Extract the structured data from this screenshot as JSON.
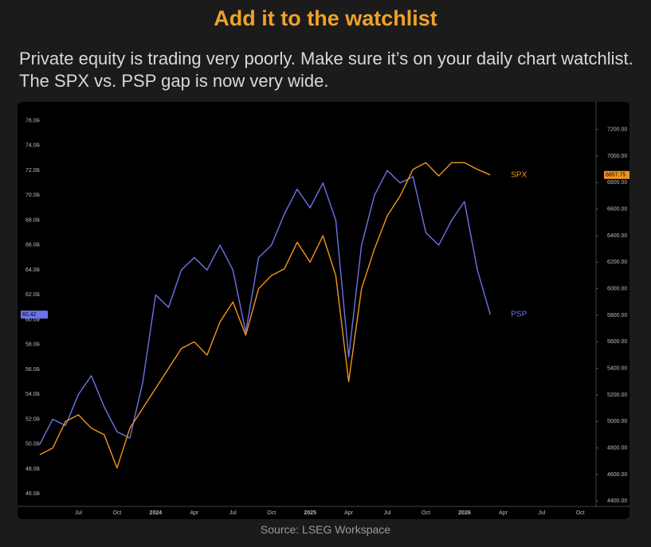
{
  "header": {
    "title": "Add it to the watchlist",
    "text": "Private equity is trading very poorly. Make sure it’s on your daily chart watchlist. The SPX vs. PSP gap is now very wide."
  },
  "footer": {
    "source": "Source: LSEG Workspace"
  },
  "chart_data": {
    "type": "line",
    "grid": false,
    "categories": [
      null,
      null,
      null,
      "Jul",
      null,
      null,
      "Oct",
      null,
      null,
      "2024",
      null,
      null,
      "Apr",
      null,
      null,
      "Jul",
      null,
      null,
      "Oct",
      null,
      null,
      "2025",
      null,
      null,
      "Apr",
      null,
      null,
      "Jul",
      null,
      null,
      "Oct",
      null,
      null,
      "2026",
      null,
      null,
      "Apr",
      null,
      null,
      "Jul",
      null,
      null,
      "Oct"
    ],
    "series": [
      {
        "name": "PSP",
        "color": "#6b74ea",
        "axis": "y",
        "values": [
          50,
          52,
          51.5,
          54,
          55.5,
          53,
          51,
          50.5,
          55,
          62,
          61,
          64,
          65,
          64,
          66,
          64,
          59,
          65,
          66,
          68.5,
          70.5,
          69,
          71,
          68,
          57,
          66,
          70,
          72,
          71,
          71.5,
          67,
          66,
          68,
          69.5,
          64,
          60.42,
          null,
          null,
          null,
          null,
          null,
          null,
          null
        ]
      },
      {
        "name": "SPX",
        "color": "#f3961a",
        "axis": "y2",
        "values": [
          4750,
          4800,
          5000,
          5050,
          4950,
          4900,
          4650,
          4950,
          5100,
          5250,
          5400,
          5550,
          5600,
          5500,
          5750,
          5900,
          5650,
          6000,
          6100,
          6150,
          6350,
          6200,
          6400,
          6100,
          5300,
          6000,
          6300,
          6550,
          6700,
          6900,
          6950,
          6850,
          6950,
          6950,
          6900,
          6857.75,
          null,
          null,
          null,
          null,
          null,
          null,
          null
        ]
      }
    ],
    "ylim": [
      45,
      77
    ],
    "yticks": [
      {
        "value": 46,
        "label": "46.00"
      },
      {
        "value": 48,
        "label": "48.00"
      },
      {
        "value": 50,
        "label": "50.00"
      },
      {
        "value": 52,
        "label": "52.00"
      },
      {
        "value": 54,
        "label": "54.00"
      },
      {
        "value": 56,
        "label": "56.00"
      },
      {
        "value": 58,
        "label": "58.00"
      },
      {
        "value": 60,
        "label": "60.00"
      },
      {
        "value": 62,
        "label": "62.00"
      },
      {
        "value": 64,
        "label": "64.00"
      },
      {
        "value": 66,
        "label": "66.00"
      },
      {
        "value": 68,
        "label": "68.00"
      },
      {
        "value": 70,
        "label": "70.00"
      },
      {
        "value": 72,
        "label": "72.00"
      },
      {
        "value": 74,
        "label": "74.00"
      },
      {
        "value": 76,
        "label": "76.00"
      }
    ],
    "y2lim": [
      4360,
      7360
    ],
    "y2ticks": [
      {
        "value": 4400,
        "label": "4400.00"
      },
      {
        "value": 4600,
        "label": "4600.00"
      },
      {
        "value": 4800,
        "label": "4800.00"
      },
      {
        "value": 5000,
        "label": "5000.00"
      },
      {
        "value": 5200,
        "label": "5200.00"
      },
      {
        "value": 5400,
        "label": "5400.00"
      },
      {
        "value": 5600,
        "label": "5600.00"
      },
      {
        "value": 5800,
        "label": "5800.00"
      },
      {
        "value": 6000,
        "label": "6000.00"
      },
      {
        "value": 6200,
        "label": "6200.00"
      },
      {
        "value": 6400,
        "label": "6400.00"
      },
      {
        "value": 6600,
        "label": "6600.00"
      },
      {
        "value": 6800,
        "label": "6800.00"
      },
      {
        "value": 7000,
        "label": "7000.00"
      },
      {
        "value": 7200,
        "label": "7200.00"
      }
    ]
  }
}
